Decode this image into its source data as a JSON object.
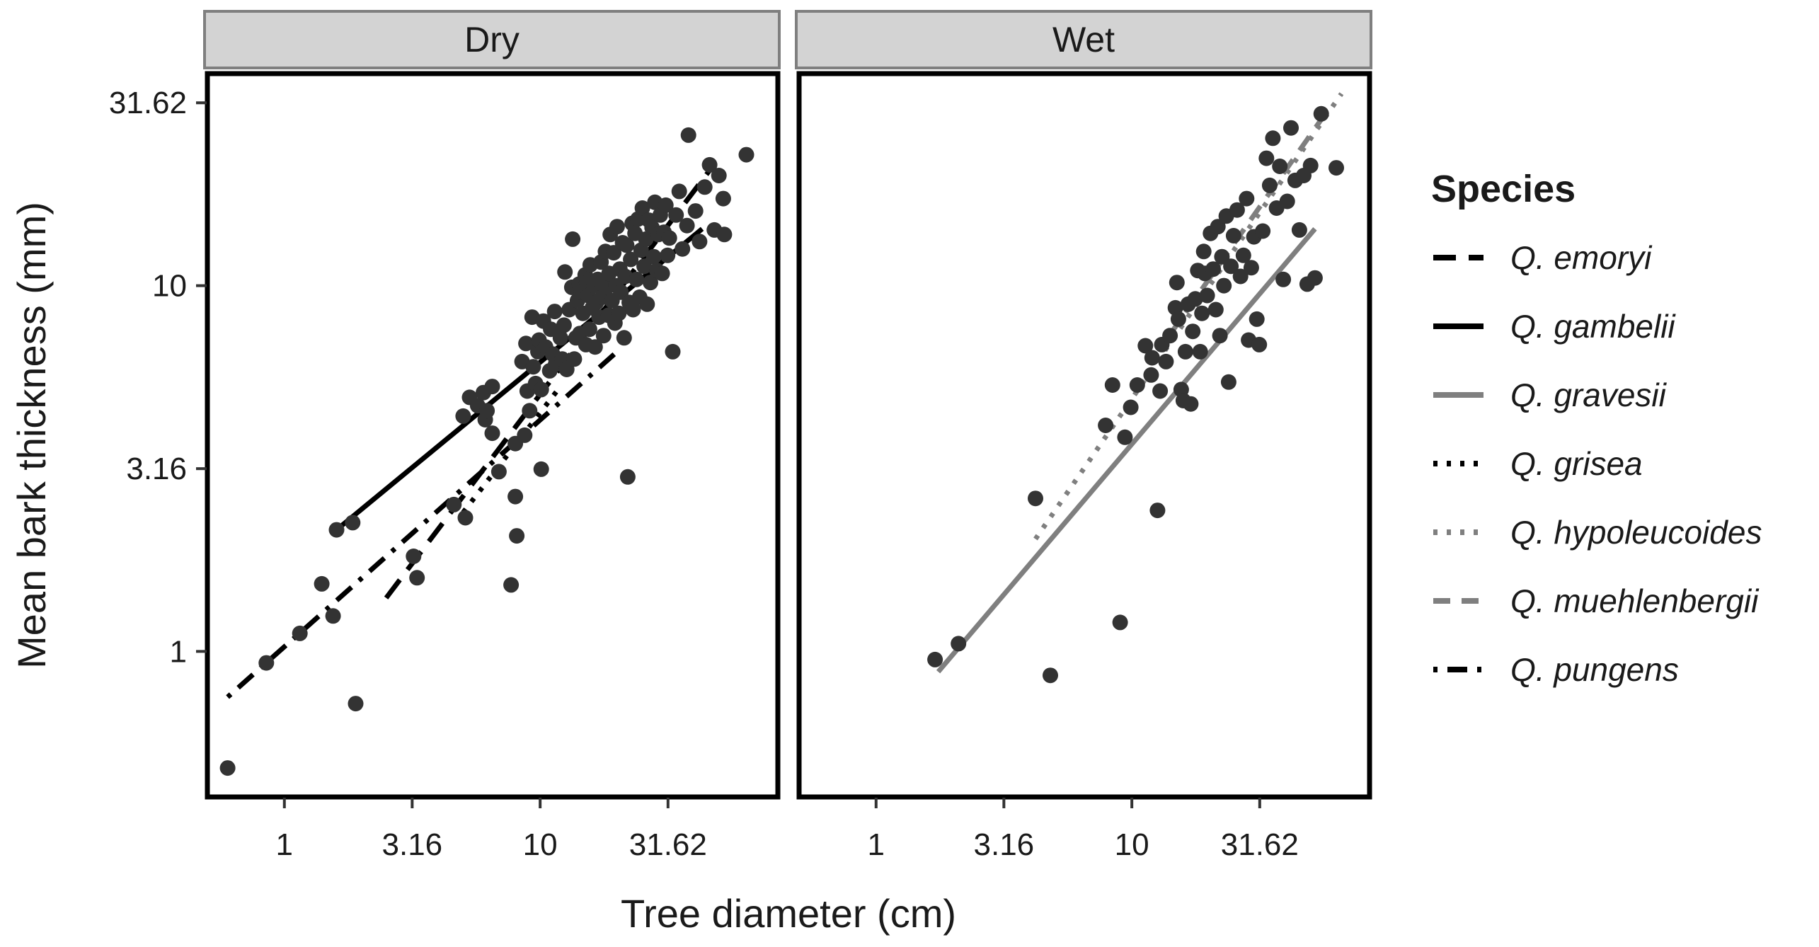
{
  "chart_data": {
    "type": "scatter",
    "facets": [
      "Dry",
      "Wet"
    ],
    "xlabel": "Tree diameter (cm)",
    "ylabel": "Mean bark thickness (mm)",
    "x_scale": "log10",
    "y_scale": "log10",
    "xlim": [
      0.5,
      85
    ],
    "ylim": [
      0.4,
      38
    ],
    "x_ticks": [
      1,
      3.16,
      10,
      31.62
    ],
    "x_tick_labels": [
      "1",
      "3.16",
      "10",
      "31.62"
    ],
    "y_ticks": [
      1,
      3.16,
      10,
      31.62
    ],
    "y_tick_labels": [
      "1",
      "3.16",
      "10",
      "31.62"
    ],
    "legend": {
      "title": "Species",
      "position": "right",
      "entries": [
        {
          "label": "Q. emoryi",
          "color": "#000000",
          "dash": "long-dash"
        },
        {
          "label": "Q. gambelii",
          "color": "#000000",
          "dash": "solid"
        },
        {
          "label": "Q. gravesii",
          "color": "#7f7f7f",
          "dash": "solid"
        },
        {
          "label": "Q. grisea",
          "color": "#000000",
          "dash": "dotted"
        },
        {
          "label": "Q. hypoleucoides",
          "color": "#7f7f7f",
          "dash": "dotted"
        },
        {
          "label": "Q. muehlenbergii",
          "color": "#7f7f7f",
          "dash": "dashed"
        },
        {
          "label": "Q. pungens",
          "color": "#000000",
          "dash": "dot-dash"
        }
      ]
    },
    "points_color": "#333333",
    "panels": [
      {
        "facet": "Dry",
        "points": [
          [
            0.6,
            0.48
          ],
          [
            0.85,
            0.93
          ],
          [
            1.15,
            1.12
          ],
          [
            1.4,
            1.53
          ],
          [
            1.55,
            1.25
          ],
          [
            1.6,
            2.15
          ],
          [
            1.85,
            2.25
          ],
          [
            1.9,
            0.72
          ],
          [
            3.2,
            1.82
          ],
          [
            3.3,
            1.59
          ],
          [
            4.6,
            2.52
          ],
          [
            5.1,
            2.32
          ],
          [
            5.0,
            4.4
          ],
          [
            5.3,
            4.95
          ],
          [
            5.7,
            4.7
          ],
          [
            6.0,
            5.1
          ],
          [
            6.1,
            4.3
          ],
          [
            6.5,
            3.95
          ],
          [
            6.5,
            5.3
          ],
          [
            6.2,
            4.55
          ],
          [
            6.9,
            3.1
          ],
          [
            7.7,
            1.52
          ],
          [
            8.1,
            2.07
          ],
          [
            8.0,
            2.65
          ],
          [
            8.0,
            3.7
          ],
          [
            8.7,
            3.9
          ],
          [
            8.9,
            5.15
          ],
          [
            8.5,
            6.2
          ],
          [
            8.8,
            6.95
          ],
          [
            9.1,
            4.55
          ],
          [
            9.3,
            8.2
          ],
          [
            9.4,
            6.0
          ],
          [
            9.6,
            5.4
          ],
          [
            9.8,
            6.6
          ],
          [
            9.9,
            7.1
          ],
          [
            10.1,
            5.2
          ],
          [
            10.1,
            3.15
          ],
          [
            10.3,
            8.0
          ],
          [
            10.5,
            6.8
          ],
          [
            10.9,
            5.85
          ],
          [
            11.0,
            7.6
          ],
          [
            11.2,
            6.5
          ],
          [
            11.4,
            8.5
          ],
          [
            11.5,
            6.1
          ],
          [
            12.0,
            7.2
          ],
          [
            12.2,
            6.3
          ],
          [
            12.4,
            7.8
          ],
          [
            12.5,
            10.9
          ],
          [
            12.7,
            5.9
          ],
          [
            13.0,
            8.6
          ],
          [
            13.3,
            9.9
          ],
          [
            13.4,
            13.4
          ],
          [
            13.6,
            6.3
          ],
          [
            13.8,
            7.2
          ],
          [
            14.0,
            9.1
          ],
          [
            14.2,
            10.1
          ],
          [
            14.3,
            7.4
          ],
          [
            14.5,
            9.6
          ],
          [
            14.7,
            8.4
          ],
          [
            15.0,
            10.7
          ],
          [
            15.1,
            6.9
          ],
          [
            15.2,
            10.2
          ],
          [
            15.4,
            9.4
          ],
          [
            15.6,
            7.6
          ],
          [
            15.7,
            11.4
          ],
          [
            16.0,
            8.7
          ],
          [
            16.2,
            10.0
          ],
          [
            16.4,
            6.8
          ],
          [
            16.6,
            9.0
          ],
          [
            16.8,
            10.4
          ],
          [
            17.0,
            8.2
          ],
          [
            17.3,
            11.6
          ],
          [
            17.5,
            9.3
          ],
          [
            17.7,
            7.3
          ],
          [
            18.0,
            12.4
          ],
          [
            18.2,
            9.9
          ],
          [
            18.5,
            8.3
          ],
          [
            18.6,
            10.8
          ],
          [
            18.8,
            13.8
          ],
          [
            19.1,
            9.1
          ],
          [
            19.4,
            12.3
          ],
          [
            19.6,
            7.9
          ],
          [
            19.8,
            10.0
          ],
          [
            20.0,
            14.5
          ],
          [
            20.3,
            8.4
          ],
          [
            20.5,
            11.1
          ],
          [
            20.7,
            9.6
          ],
          [
            21.0,
            13.1
          ],
          [
            21.3,
            7.2
          ],
          [
            21.5,
            10.6
          ],
          [
            21.8,
            12.9
          ],
          [
            22.0,
            3.0
          ],
          [
            22.3,
            9.0
          ],
          [
            22.6,
            11.8
          ],
          [
            22.9,
            14.8
          ],
          [
            23.1,
            8.6
          ],
          [
            23.5,
            13.9
          ],
          [
            23.8,
            10.4
          ],
          [
            24.1,
            15.2
          ],
          [
            24.5,
            9.3
          ],
          [
            24.8,
            12.5
          ],
          [
            25.1,
            16.3
          ],
          [
            25.5,
            11.3
          ],
          [
            25.9,
            13.4
          ],
          [
            26.2,
            8.9
          ],
          [
            26.6,
            15.1
          ],
          [
            27.0,
            10.2
          ],
          [
            27.4,
            14.4
          ],
          [
            27.8,
            12.0
          ],
          [
            28.1,
            16.9
          ],
          [
            28.6,
            11.0
          ],
          [
            29.0,
            13.8
          ],
          [
            29.5,
            15.6
          ],
          [
            30.0,
            10.8
          ],
          [
            30.5,
            14.0
          ],
          [
            31.0,
            16.6
          ],
          [
            31.5,
            12.1
          ],
          [
            32.0,
            13.5
          ],
          [
            33.0,
            6.6
          ],
          [
            34.0,
            15.6
          ],
          [
            35.0,
            18.1
          ],
          [
            36.0,
            12.6
          ],
          [
            37.5,
            14.6
          ],
          [
            38.0,
            25.8
          ],
          [
            40.5,
            16.0
          ],
          [
            42.0,
            13.2
          ],
          [
            44.0,
            18.6
          ],
          [
            46.0,
            21.4
          ],
          [
            48.0,
            14.2
          ],
          [
            50.0,
            20.0
          ],
          [
            52.0,
            17.3
          ],
          [
            52.5,
            13.8
          ],
          [
            64.0,
            22.8
          ]
        ],
        "lines": [
          {
            "species": "Q. emoryi",
            "x": [
              2.5,
              48.0
            ],
            "y": [
              1.4,
              21.5
            ]
          },
          {
            "species": "Q. gambelii",
            "x": [
              1.6,
              43.0
            ],
            "y": [
              2.15,
              14.3
            ]
          },
          {
            "species": "Q. grisea",
            "x": [
              5.0,
              12.0
            ],
            "y": [
              2.4,
              5.3
            ]
          },
          {
            "species": "Q. pungens",
            "x": [
              0.6,
              20.0
            ],
            "y": [
              0.75,
              6.6
            ]
          }
        ]
      },
      {
        "facet": "Wet",
        "points": [
          [
            1.7,
            0.95
          ],
          [
            2.1,
            1.05
          ],
          [
            4.2,
            2.62
          ],
          [
            4.8,
            0.86
          ],
          [
            7.9,
            4.15
          ],
          [
            8.4,
            5.35
          ],
          [
            9.0,
            1.2
          ],
          [
            9.4,
            3.85
          ],
          [
            9.9,
            4.65
          ],
          [
            10.5,
            5.35
          ],
          [
            11.3,
            6.85
          ],
          [
            11.9,
            5.7
          ],
          [
            12.0,
            6.35
          ],
          [
            12.6,
            2.43
          ],
          [
            12.9,
            5.15
          ],
          [
            13.1,
            6.9
          ],
          [
            13.6,
            6.2
          ],
          [
            14.1,
            7.3
          ],
          [
            14.8,
            8.7
          ],
          [
            15.0,
            10.2
          ],
          [
            15.2,
            8.1
          ],
          [
            15.6,
            5.2
          ],
          [
            15.9,
            4.85
          ],
          [
            16.2,
            6.6
          ],
          [
            16.6,
            8.9
          ],
          [
            17.0,
            4.75
          ],
          [
            17.3,
            7.5
          ],
          [
            17.7,
            9.2
          ],
          [
            18.1,
            11.0
          ],
          [
            18.5,
            6.6
          ],
          [
            18.8,
            8.4
          ],
          [
            19.1,
            12.4
          ],
          [
            19.3,
            10.8
          ],
          [
            19.7,
            9.4
          ],
          [
            20.3,
            13.9
          ],
          [
            20.8,
            11.1
          ],
          [
            21.3,
            8.6
          ],
          [
            21.7,
            14.5
          ],
          [
            22.1,
            7.3
          ],
          [
            22.5,
            12.0
          ],
          [
            22.9,
            10.0
          ],
          [
            23.4,
            15.5
          ],
          [
            23.9,
            5.45
          ],
          [
            24.4,
            11.3
          ],
          [
            25.0,
            13.7
          ],
          [
            25.8,
            16.1
          ],
          [
            26.6,
            10.6
          ],
          [
            27.3,
            12.1
          ],
          [
            28.1,
            17.3
          ],
          [
            28.6,
            7.1
          ],
          [
            29.3,
            11.2
          ],
          [
            30.0,
            13.6
          ],
          [
            30.8,
            8.1
          ],
          [
            31.5,
            6.9
          ],
          [
            32.5,
            14.1
          ],
          [
            33.6,
            22.3
          ],
          [
            34.6,
            18.8
          ],
          [
            35.6,
            25.3
          ],
          [
            36.8,
            16.3
          ],
          [
            37.9,
            21.2
          ],
          [
            39.1,
            10.4
          ],
          [
            40.5,
            17.0
          ],
          [
            41.9,
            27.0
          ],
          [
            43.5,
            19.4
          ],
          [
            45.2,
            14.2
          ],
          [
            47.0,
            20.0
          ],
          [
            48.5,
            10.1
          ],
          [
            50.0,
            21.3
          ],
          [
            52.0,
            10.5
          ],
          [
            55.0,
            29.5
          ],
          [
            63.0,
            21.0
          ]
        ],
        "lines": [
          {
            "species": "Q. gravesii",
            "x": [
              1.75,
              52.0
            ],
            "y": [
              0.88,
              14.3
            ]
          },
          {
            "species": "Q. hypoleucoides",
            "x": [
              4.2,
              66.0
            ],
            "y": [
              2.03,
              33.5
            ]
          },
          {
            "species": "Q. muehlenbergii",
            "x": [
              14.0,
              58.0
            ],
            "y": [
              7.3,
              30.0
            ]
          }
        ]
      }
    ]
  }
}
